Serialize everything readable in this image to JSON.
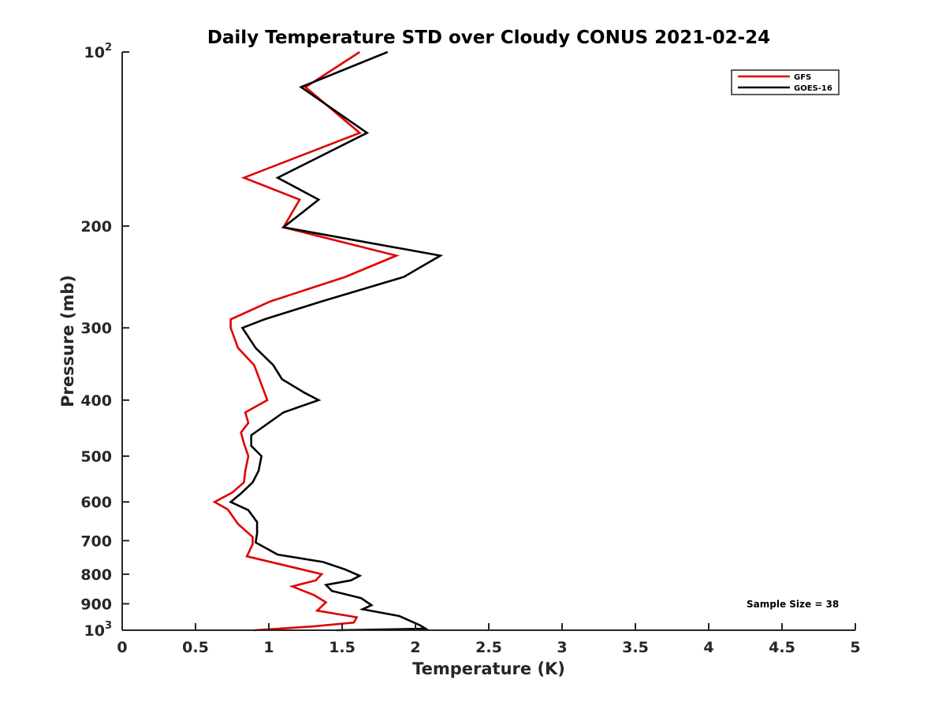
{
  "chart_data": {
    "type": "line",
    "title": "Daily Temperature STD over Cloudy CONUS 2021-02-24",
    "xlabel": "Temperature (K)",
    "ylabel": "Pressure (mb)",
    "xlim": [
      0,
      5
    ],
    "ylim": [
      100,
      1000
    ],
    "y_scale": "log",
    "y_reversed": true,
    "grid": false,
    "legend_position": "top-right",
    "x_ticks": [
      "0",
      "0.5",
      "1",
      "1.5",
      "2",
      "2.5",
      "3",
      "3.5",
      "4",
      "4.5",
      "5"
    ],
    "y_ticks": [
      {
        "value": 100,
        "base": "10",
        "exp": "2"
      },
      {
        "value": 200,
        "label": "200"
      },
      {
        "value": 300,
        "label": "300"
      },
      {
        "value": 400,
        "label": "400"
      },
      {
        "value": 500,
        "label": "500"
      },
      {
        "value": 600,
        "label": "600"
      },
      {
        "value": 700,
        "label": "700"
      },
      {
        "value": 800,
        "label": "800"
      },
      {
        "value": 900,
        "label": "900"
      },
      {
        "value": 1000,
        "base": "10",
        "exp": "3"
      }
    ],
    "annotation": "Sample Size = 38",
    "series": [
      {
        "name": "GFS",
        "color": "#e00000",
        "points": [
          [
            1.62,
            100
          ],
          [
            1.25,
            115
          ],
          [
            1.62,
            138
          ],
          [
            0.83,
            165
          ],
          [
            1.21,
            180
          ],
          [
            1.1,
            201
          ],
          [
            1.87,
            225
          ],
          [
            1.52,
            245
          ],
          [
            1.01,
            270
          ],
          [
            0.74,
            290
          ],
          [
            0.74,
            300
          ],
          [
            0.79,
            325
          ],
          [
            0.9,
            348
          ],
          [
            0.95,
            376
          ],
          [
            0.99,
            400
          ],
          [
            0.84,
            420
          ],
          [
            0.86,
            438
          ],
          [
            0.81,
            455
          ],
          [
            0.83,
            475
          ],
          [
            0.86,
            500
          ],
          [
            0.84,
            530
          ],
          [
            0.83,
            555
          ],
          [
            0.75,
            578
          ],
          [
            0.63,
            600
          ],
          [
            0.72,
            618
          ],
          [
            0.79,
            655
          ],
          [
            0.89,
            690
          ],
          [
            0.89,
            710
          ],
          [
            0.85,
            745
          ],
          [
            1.18,
            780
          ],
          [
            1.36,
            800
          ],
          [
            1.32,
            820
          ],
          [
            1.16,
            840
          ],
          [
            1.31,
            870
          ],
          [
            1.39,
            895
          ],
          [
            1.33,
            925
          ],
          [
            1.6,
            950
          ],
          [
            1.58,
            970
          ],
          [
            1.3,
            985
          ],
          [
            0.9,
            1000
          ]
        ]
      },
      {
        "name": "GOES-16",
        "color": "#000000",
        "points": [
          [
            1.81,
            100
          ],
          [
            1.22,
            115
          ],
          [
            1.67,
            138
          ],
          [
            1.06,
            165
          ],
          [
            1.34,
            180
          ],
          [
            1.1,
            201
          ],
          [
            2.17,
            225
          ],
          [
            1.92,
            245
          ],
          [
            1.36,
            270
          ],
          [
            0.97,
            290
          ],
          [
            0.82,
            300
          ],
          [
            0.91,
            325
          ],
          [
            1.03,
            348
          ],
          [
            1.09,
            368
          ],
          [
            1.24,
            388
          ],
          [
            1.34,
            400
          ],
          [
            1.1,
            420
          ],
          [
            0.88,
            460
          ],
          [
            0.88,
            480
          ],
          [
            0.95,
            500
          ],
          [
            0.93,
            530
          ],
          [
            0.89,
            555
          ],
          [
            0.81,
            580
          ],
          [
            0.74,
            600
          ],
          [
            0.86,
            620
          ],
          [
            0.92,
            650
          ],
          [
            0.92,
            680
          ],
          [
            0.91,
            705
          ],
          [
            1.06,
            740
          ],
          [
            1.37,
            762
          ],
          [
            1.52,
            785
          ],
          [
            1.62,
            805
          ],
          [
            1.56,
            820
          ],
          [
            1.39,
            835
          ],
          [
            1.43,
            855
          ],
          [
            1.63,
            880
          ],
          [
            1.7,
            905
          ],
          [
            1.64,
            920
          ],
          [
            1.89,
            945
          ],
          [
            2.03,
            980
          ],
          [
            2.07,
            994
          ],
          [
            1.46,
            1000
          ]
        ]
      }
    ]
  }
}
